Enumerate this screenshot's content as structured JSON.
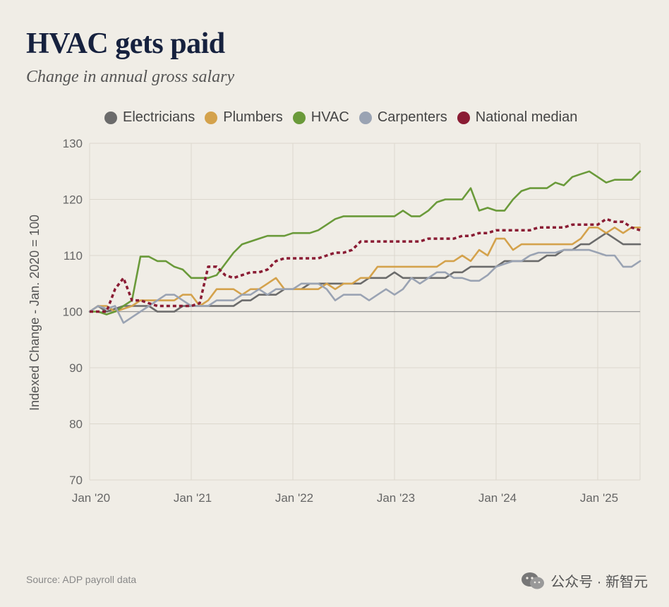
{
  "title": "HVAC gets paid",
  "subtitle": "Change in annual gross salary",
  "source": "Source: ADP payroll data",
  "watermark": "公众号 · 新智元",
  "chart_data": {
    "type": "line",
    "ylabel": "Indexed Change - Jan. 2020 = 100",
    "ylim": [
      70,
      130
    ],
    "yticks": [
      70,
      80,
      90,
      100,
      110,
      120,
      130
    ],
    "xlim": [
      0,
      65
    ],
    "xticks": [
      {
        "label": "Jan '20",
        "x": 0
      },
      {
        "label": "Jan '21",
        "x": 12
      },
      {
        "label": "Jan '22",
        "x": 24
      },
      {
        "label": "Jan '23",
        "x": 36
      },
      {
        "label": "Jan '24",
        "x": 48
      },
      {
        "label": "Jan '25",
        "x": 60
      }
    ],
    "reference_line": 100,
    "series": [
      {
        "name": "Electricians",
        "color": "#6b6b6b",
        "dashed": false,
        "x": [
          0,
          1,
          2,
          3,
          4,
          5,
          6,
          7,
          8,
          9,
          10,
          11,
          12,
          13,
          14,
          15,
          16,
          17,
          18,
          19,
          20,
          21,
          22,
          23,
          24,
          25,
          26,
          27,
          28,
          29,
          30,
          31,
          32,
          33,
          34,
          35,
          36,
          37,
          38,
          39,
          40,
          41,
          42,
          43,
          44,
          45,
          46,
          47,
          48,
          49,
          50,
          51,
          52,
          53,
          54,
          55,
          56,
          57,
          58,
          59,
          60,
          61,
          62,
          63,
          64,
          65
        ],
        "values": [
          100,
          101,
          100,
          100.5,
          101,
          101,
          101,
          101,
          100,
          100,
          100,
          101,
          101,
          101,
          101,
          101,
          101,
          101,
          102,
          102,
          103,
          103,
          103,
          104,
          104,
          104,
          105,
          105,
          105,
          105,
          105,
          105,
          105,
          106,
          106,
          106,
          107,
          106,
          106,
          106,
          106,
          106,
          106,
          107,
          107,
          108,
          108,
          108,
          108,
          109,
          109,
          109,
          109,
          109,
          110,
          110,
          111,
          111,
          112,
          112,
          113,
          114,
          113,
          112,
          112,
          112
        ]
      },
      {
        "name": "Plumbers",
        "color": "#d4a24c",
        "dashed": false,
        "x": [
          0,
          1,
          2,
          3,
          4,
          5,
          6,
          7,
          8,
          9,
          10,
          11,
          12,
          13,
          14,
          15,
          16,
          17,
          18,
          19,
          20,
          21,
          22,
          23,
          24,
          25,
          26,
          27,
          28,
          29,
          30,
          31,
          32,
          33,
          34,
          35,
          36,
          37,
          38,
          39,
          40,
          41,
          42,
          43,
          44,
          45,
          46,
          47,
          48,
          49,
          50,
          51,
          52,
          53,
          54,
          55,
          56,
          57,
          58,
          59,
          60,
          61,
          62,
          63,
          64,
          65
        ],
        "values": [
          100,
          101,
          101,
          100,
          100.5,
          101,
          102,
          102,
          102,
          102,
          102,
          103,
          103,
          101,
          102,
          104,
          104,
          104,
          103,
          104,
          104,
          105,
          106,
          104,
          104,
          104,
          104,
          104,
          105,
          104,
          105,
          105,
          106,
          106,
          108,
          108,
          108,
          108,
          108,
          108,
          108,
          108,
          109,
          109,
          110,
          109,
          111,
          110,
          113,
          113,
          111,
          112,
          112,
          112,
          112,
          112,
          112,
          112,
          113,
          115,
          115,
          114,
          115,
          114,
          115,
          115
        ]
      },
      {
        "name": "HVAC",
        "color": "#6a9a3a",
        "dashed": false,
        "x": [
          0,
          1,
          2,
          3,
          4,
          5,
          6,
          7,
          8,
          9,
          10,
          11,
          12,
          13,
          14,
          15,
          16,
          17,
          18,
          19,
          20,
          21,
          22,
          23,
          24,
          25,
          26,
          27,
          28,
          29,
          30,
          31,
          32,
          33,
          34,
          35,
          36,
          37,
          38,
          39,
          40,
          41,
          42,
          43,
          44,
          45,
          46,
          47,
          48,
          49,
          50,
          51,
          52,
          53,
          54,
          55,
          56,
          57,
          58,
          59,
          60,
          61,
          62,
          63,
          64,
          65
        ],
        "values": [
          100,
          100,
          99.5,
          100,
          101,
          102,
          109.8,
          109.8,
          109,
          109,
          108,
          107.5,
          106,
          106,
          106,
          106.5,
          108.5,
          110.5,
          112,
          112.5,
          113,
          113.5,
          113.5,
          113.5,
          114,
          114,
          114,
          114.5,
          115.5,
          116.5,
          117,
          117,
          117,
          117,
          117,
          117,
          117,
          118,
          117,
          117,
          118,
          119.5,
          120,
          120,
          120,
          122,
          118,
          118.5,
          118,
          118,
          120,
          121.5,
          122,
          122,
          122,
          123,
          122.5,
          124,
          124.5,
          125,
          124,
          123,
          123.5,
          123.5,
          123.5,
          125
        ]
      },
      {
        "name": "Carpenters",
        "color": "#9aa3b3",
        "dashed": false,
        "x": [
          0,
          1,
          2,
          3,
          4,
          5,
          6,
          7,
          8,
          9,
          10,
          11,
          12,
          13,
          14,
          15,
          16,
          17,
          18,
          19,
          20,
          21,
          22,
          23,
          24,
          25,
          26,
          27,
          28,
          29,
          30,
          31,
          32,
          33,
          34,
          35,
          36,
          37,
          38,
          39,
          40,
          41,
          42,
          43,
          44,
          45,
          46,
          47,
          48,
          49,
          50,
          51,
          52,
          53,
          54,
          55,
          56,
          57,
          58,
          59,
          60,
          61,
          62,
          63,
          64,
          65
        ],
        "values": [
          100,
          101,
          100.5,
          101,
          98,
          99,
          100,
          101,
          102,
          103,
          103,
          102,
          101,
          101,
          101,
          102,
          102,
          102,
          103,
          103,
          104,
          103,
          104,
          104,
          104,
          105,
          105,
          105,
          104,
          102,
          103,
          103,
          103,
          102,
          103,
          104,
          103,
          104,
          106,
          105,
          106,
          107,
          107,
          106,
          106,
          105.5,
          105.5,
          106.5,
          108,
          108.5,
          109,
          109,
          110,
          110.5,
          110.5,
          110.5,
          111,
          111,
          111,
          111,
          110.5,
          110,
          110,
          108,
          108,
          109
        ]
      },
      {
        "name": "National median",
        "color": "#8a1c34",
        "dashed": true,
        "x": [
          0,
          1,
          2,
          3,
          4,
          5,
          6,
          7,
          8,
          9,
          10,
          11,
          12,
          13,
          14,
          15,
          16,
          17,
          18,
          19,
          20,
          21,
          22,
          23,
          24,
          25,
          26,
          27,
          28,
          29,
          30,
          31,
          32,
          33,
          34,
          35,
          36,
          37,
          38,
          39,
          40,
          41,
          42,
          43,
          44,
          45,
          46,
          47,
          48,
          49,
          50,
          51,
          52,
          53,
          54,
          55,
          56,
          57,
          58,
          59,
          60,
          61,
          62,
          63,
          64,
          65
        ],
        "values": [
          100,
          100,
          100,
          104,
          106,
          102,
          102,
          101.5,
          101,
          101,
          101,
          101,
          101,
          101.5,
          108,
          108,
          106.5,
          106,
          106.5,
          107,
          107,
          107.5,
          109,
          109.5,
          109.5,
          109.5,
          109.5,
          109.5,
          110,
          110.5,
          110.5,
          111,
          112.5,
          112.5,
          112.5,
          112.5,
          112.5,
          112.5,
          112.5,
          112.5,
          113,
          113,
          113,
          113,
          113.5,
          113.5,
          114,
          114,
          114.5,
          114.5,
          114.5,
          114.5,
          114.5,
          115,
          115,
          115,
          115,
          115.5,
          115.5,
          115.5,
          115.5,
          116.5,
          116,
          116,
          115,
          114.5
        ]
      }
    ]
  }
}
